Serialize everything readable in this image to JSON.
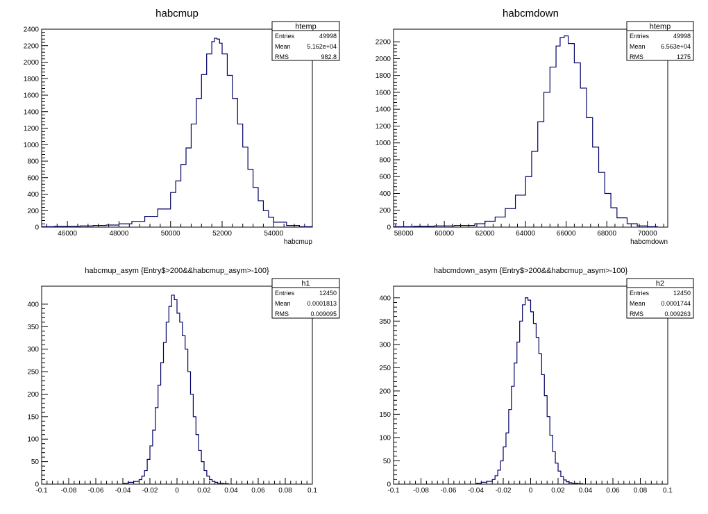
{
  "chart_data": [
    {
      "type": "histogram",
      "title": "habcmup",
      "xlabel": "habcmup",
      "ylabel": "",
      "xlim": [
        45000,
        55500
      ],
      "ylim": [
        0,
        2400
      ],
      "x_ticks": [
        46000,
        48000,
        50000,
        52000,
        54000
      ],
      "y_ticks": [
        0,
        200,
        400,
        600,
        800,
        1000,
        1200,
        1400,
        1600,
        1800,
        2000,
        2200,
        2400
      ],
      "line_color": "#000066",
      "stats": {
        "name": "htemp",
        "rows": [
          [
            "Entries",
            "49998"
          ],
          [
            "Mean",
            "5.162e+04"
          ],
          [
            "RMS",
            "982.8"
          ]
        ]
      },
      "bins": {
        "x": [
          45000,
          45500,
          46000,
          46500,
          47000,
          47500,
          48000,
          48500,
          49000,
          49500,
          50000,
          50200,
          50400,
          50600,
          50800,
          51000,
          51200,
          51400,
          51600,
          51700,
          51800,
          51900,
          52000,
          52200,
          52400,
          52600,
          52800,
          53000,
          53200,
          53400,
          53600,
          53800,
          54000,
          54500,
          55000
        ],
        "y": [
          5,
          10,
          10,
          15,
          20,
          25,
          40,
          70,
          130,
          220,
          420,
          560,
          760,
          960,
          1250,
          1560,
          1850,
          2100,
          2250,
          2290,
          2280,
          2230,
          2100,
          1840,
          1560,
          1250,
          970,
          700,
          480,
          320,
          200,
          120,
          60,
          20,
          5
        ]
      }
    },
    {
      "type": "histogram",
      "title": "habcmdown",
      "xlabel": "habcmdown",
      "ylabel": "",
      "xlim": [
        57500,
        71000
      ],
      "ylim": [
        0,
        2350
      ],
      "x_ticks": [
        58000,
        60000,
        62000,
        64000,
        66000,
        68000,
        70000
      ],
      "y_ticks": [
        0,
        200,
        400,
        600,
        800,
        1000,
        1200,
        1400,
        1600,
        1800,
        2000,
        2200
      ],
      "line_color": "#000066",
      "stats": {
        "name": "htemp",
        "rows": [
          [
            "Entries",
            "49998"
          ],
          [
            "Mean",
            "6.563e+04"
          ],
          [
            "RMS",
            "1275"
          ]
        ]
      },
      "bins": {
        "x": [
          57500,
          58500,
          59500,
          60500,
          61500,
          62000,
          62500,
          63000,
          63500,
          64000,
          64300,
          64600,
          64900,
          65200,
          65500,
          65700,
          65900,
          66100,
          66400,
          66700,
          67000,
          67300,
          67600,
          67900,
          68200,
          68500,
          69000,
          69500,
          70000
        ],
        "y": [
          5,
          10,
          15,
          20,
          40,
          70,
          120,
          220,
          380,
          600,
          900,
          1250,
          1600,
          1900,
          2150,
          2250,
          2270,
          2180,
          1950,
          1650,
          1300,
          950,
          650,
          400,
          230,
          110,
          40,
          15,
          5
        ]
      }
    },
    {
      "type": "histogram",
      "title": "habcmup_asym {Entry$>200&&habcmup_asym>-100}",
      "xlabel": "",
      "ylabel": "",
      "xlim": [
        -0.1,
        0.1
      ],
      "ylim": [
        0,
        440
      ],
      "x_ticks": [
        -0.1,
        -0.08,
        -0.06,
        -0.04,
        -0.02,
        0,
        0.02,
        0.04,
        0.06,
        0.08,
        0.1
      ],
      "y_ticks": [
        0,
        50,
        100,
        150,
        200,
        250,
        300,
        350,
        400
      ],
      "line_color": "#000066",
      "stats": {
        "name": "h1",
        "rows": [
          [
            "Entries",
            "12450"
          ],
          [
            "Mean",
            "0.0001813"
          ],
          [
            "RMS",
            "0.009095"
          ]
        ]
      },
      "bins": {
        "x": [
          -0.04,
          -0.036,
          -0.032,
          -0.028,
          -0.026,
          -0.024,
          -0.022,
          -0.02,
          -0.018,
          -0.016,
          -0.014,
          -0.012,
          -0.01,
          -0.008,
          -0.006,
          -0.004,
          -0.002,
          0,
          0.002,
          0.004,
          0.006,
          0.008,
          0.01,
          0.012,
          0.014,
          0.016,
          0.018,
          0.02,
          0.022,
          0.024,
          0.026,
          0.028,
          0.03,
          0.034
        ],
        "y": [
          2,
          4,
          6,
          10,
          18,
          30,
          55,
          85,
          120,
          170,
          220,
          270,
          315,
          360,
          395,
          420,
          410,
          380,
          360,
          330,
          300,
          250,
          200,
          150,
          110,
          75,
          50,
          30,
          18,
          10,
          6,
          4,
          2,
          1
        ]
      }
    },
    {
      "type": "histogram",
      "title": "habcmdown_asym {Entry$>200&&habcmup_asym>-100}",
      "xlabel": "",
      "ylabel": "",
      "xlim": [
        -0.1,
        0.1
      ],
      "ylim": [
        0,
        425
      ],
      "x_ticks": [
        -0.1,
        -0.08,
        -0.06,
        -0.04,
        -0.02,
        0,
        0.02,
        0.04,
        0.06,
        0.08,
        0.1
      ],
      "y_ticks": [
        0,
        50,
        100,
        150,
        200,
        250,
        300,
        350,
        400
      ],
      "line_color": "#000066",
      "stats": {
        "name": "h2",
        "rows": [
          [
            "Entries",
            "12450"
          ],
          [
            "Mean",
            "0.0001744"
          ],
          [
            "RMS",
            "0.009263"
          ]
        ]
      },
      "bins": {
        "x": [
          -0.04,
          -0.036,
          -0.032,
          -0.028,
          -0.026,
          -0.024,
          -0.022,
          -0.02,
          -0.018,
          -0.016,
          -0.014,
          -0.012,
          -0.01,
          -0.008,
          -0.006,
          -0.004,
          -0.002,
          0,
          0.002,
          0.004,
          0.006,
          0.008,
          0.01,
          0.012,
          0.014,
          0.016,
          0.018,
          0.02,
          0.022,
          0.024,
          0.026,
          0.028,
          0.03,
          0.034
        ],
        "y": [
          2,
          4,
          6,
          10,
          18,
          30,
          50,
          80,
          110,
          160,
          210,
          260,
          305,
          350,
          385,
          400,
          395,
          370,
          345,
          315,
          280,
          235,
          190,
          145,
          105,
          70,
          45,
          28,
          16,
          9,
          5,
          3,
          2,
          1
        ]
      }
    }
  ]
}
